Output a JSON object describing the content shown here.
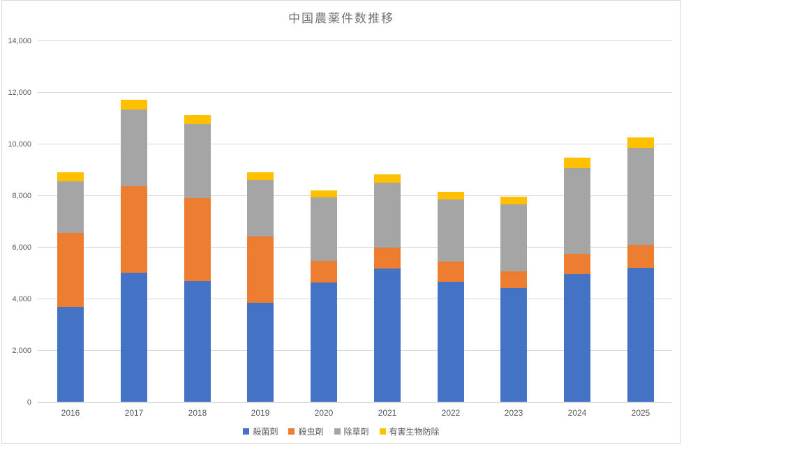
{
  "title": "中国農薬件数推移",
  "chart_data": {
    "type": "bar",
    "stacked": true,
    "title": "中国農薬件数推移",
    "xlabel": "",
    "ylabel": "",
    "categories": [
      "2016",
      "2017",
      "2018",
      "2019",
      "2020",
      "2021",
      "2022",
      "2023",
      "2024",
      "2025"
    ],
    "series": [
      {
        "name": "殺菌剤",
        "color": "#4472C4",
        "values": [
          3690,
          5000,
          4670,
          3840,
          4620,
          5150,
          4660,
          4420,
          4960,
          5180
        ]
      },
      {
        "name": "殺虫剤",
        "color": "#ED7D31",
        "values": [
          2850,
          3360,
          3220,
          2560,
          850,
          820,
          770,
          630,
          780,
          900
        ]
      },
      {
        "name": "除草剤",
        "color": "#A5A5A5",
        "values": [
          2000,
          2970,
          2870,
          2190,
          2440,
          2530,
          2410,
          2610,
          3320,
          3750
        ]
      },
      {
        "name": "有害生物防除",
        "color": "#FFC000",
        "values": [
          340,
          380,
          340,
          310,
          290,
          300,
          300,
          300,
          400,
          410
        ]
      }
    ],
    "totals": [
      8880,
      11710,
      11100,
      8900,
      8200,
      8800,
      8140,
      7960,
      9460,
      10240
    ],
    "ylim": [
      0,
      14000
    ],
    "ytick_interval": 2000,
    "yticks": [
      0,
      2000,
      4000,
      6000,
      8000,
      10000,
      12000,
      14000
    ],
    "ytick_labels": [
      "0",
      "2,000",
      "4,000",
      "6,000",
      "8,000",
      "10,000",
      "12,000",
      "14,000"
    ],
    "grid": true,
    "legend_position": "bottom"
  },
  "colors": {
    "background": "#ffffff",
    "chart_border": "#D9D9D9",
    "gridline": "#D9D9D9",
    "axis_line": "#BFBFBF",
    "tick_text": "#595959",
    "title_text": "#737373"
  }
}
